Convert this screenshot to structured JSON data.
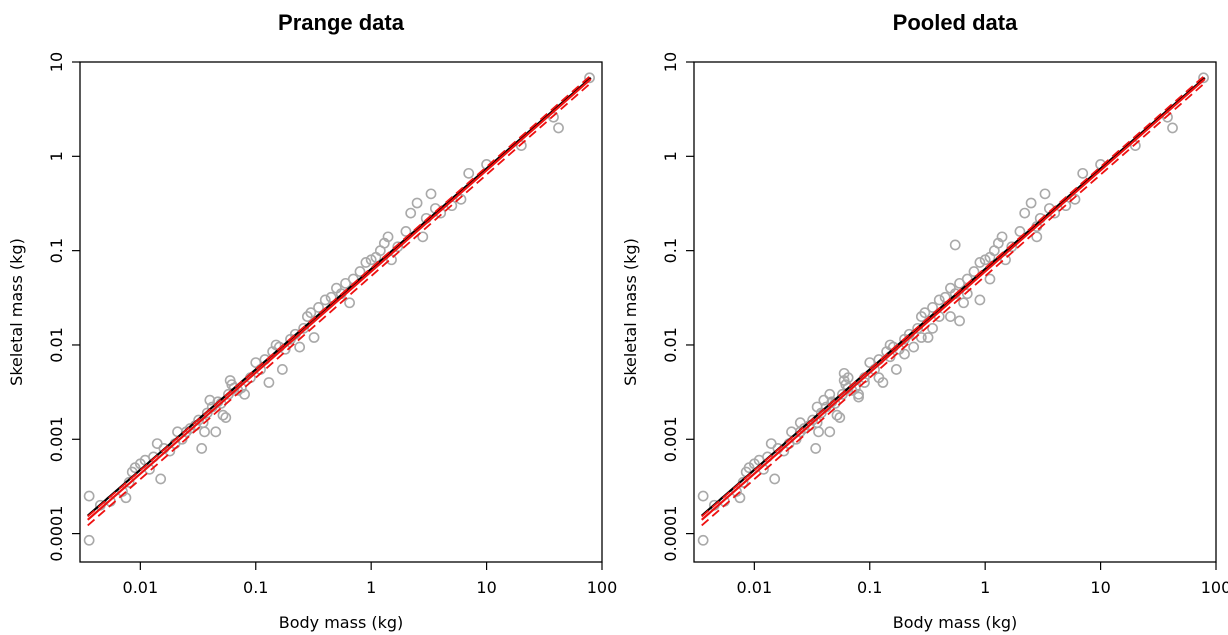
{
  "colors": {
    "points": "#a9a9a9",
    "fit_black": "#000000",
    "fit_red": "#ee1111",
    "ci_red": "#ee1111"
  },
  "chart_data": [
    {
      "type": "scatter",
      "title": "Prange data",
      "xlabel": "Body mass (kg)",
      "ylabel": "Skeletal mass (kg)",
      "x_scale": "log",
      "y_scale": "log",
      "xlim": [
        0.003,
        100
      ],
      "ylim": [
        5e-05,
        10
      ],
      "x_ticks": [
        0.01,
        0.1,
        1,
        10,
        100
      ],
      "x_tick_labels": [
        "0.01",
        "0.1",
        "1",
        "10",
        "100"
      ],
      "y_ticks": [
        0.0001,
        0.001,
        0.01,
        0.1,
        1,
        10
      ],
      "y_tick_labels": [
        "0.0001",
        "0.001",
        "0.01",
        "0.1",
        "1",
        "10"
      ],
      "grid": false,
      "lines": [
        {
          "style": "solid",
          "color": "#000000",
          "x": [
            0.0035,
            80
          ],
          "y": [
            0.000155,
            6.8
          ]
        },
        {
          "style": "solid",
          "color": "#ee1111",
          "x": [
            0.0035,
            80
          ],
          "y": [
            0.00014,
            6.6
          ]
        },
        {
          "style": "dashed",
          "color": "#ee1111",
          "x": [
            0.0035,
            80
          ],
          "y": [
            0.000152,
            7.2
          ]
        },
        {
          "style": "dashed",
          "color": "#ee1111",
          "x": [
            0.0035,
            80
          ],
          "y": [
            0.000122,
            6.0
          ]
        }
      ],
      "points": [
        [
          0.0036,
          0.00025
        ],
        [
          0.0036,
          8.5e-05
        ],
        [
          0.0045,
          0.0002
        ],
        [
          0.0055,
          0.00022
        ],
        [
          0.007,
          0.00028
        ],
        [
          0.0075,
          0.00024
        ],
        [
          0.008,
          0.00035
        ],
        [
          0.0085,
          0.00045
        ],
        [
          0.009,
          0.0005
        ],
        [
          0.01,
          0.00055
        ],
        [
          0.011,
          0.0006
        ],
        [
          0.012,
          0.00048
        ],
        [
          0.013,
          0.00065
        ],
        [
          0.014,
          0.0009
        ],
        [
          0.015,
          0.00038
        ],
        [
          0.016,
          0.0008
        ],
        [
          0.018,
          0.00075
        ],
        [
          0.02,
          0.0009
        ],
        [
          0.021,
          0.0012
        ],
        [
          0.023,
          0.001
        ],
        [
          0.025,
          0.0012
        ],
        [
          0.027,
          0.0013
        ],
        [
          0.03,
          0.0014
        ],
        [
          0.032,
          0.0016
        ],
        [
          0.034,
          0.0008
        ],
        [
          0.035,
          0.0015
        ],
        [
          0.036,
          0.0012
        ],
        [
          0.038,
          0.0019
        ],
        [
          0.04,
          0.0026
        ],
        [
          0.042,
          0.0022
        ],
        [
          0.045,
          0.0012
        ],
        [
          0.047,
          0.0025
        ],
        [
          0.05,
          0.0024
        ],
        [
          0.052,
          0.0018
        ],
        [
          0.055,
          0.0017
        ],
        [
          0.058,
          0.003
        ],
        [
          0.06,
          0.0042
        ],
        [
          0.062,
          0.0038
        ],
        [
          0.065,
          0.0035
        ],
        [
          0.07,
          0.0033
        ],
        [
          0.075,
          0.0035
        ],
        [
          0.08,
          0.003
        ],
        [
          0.09,
          0.0045
        ],
        [
          0.1,
          0.0065
        ],
        [
          0.11,
          0.0055
        ],
        [
          0.12,
          0.007
        ],
        [
          0.13,
          0.004
        ],
        [
          0.14,
          0.0085
        ],
        [
          0.15,
          0.01
        ],
        [
          0.16,
          0.0095
        ],
        [
          0.17,
          0.0055
        ],
        [
          0.18,
          0.009
        ],
        [
          0.2,
          0.0115
        ],
        [
          0.22,
          0.013
        ],
        [
          0.24,
          0.0095
        ],
        [
          0.26,
          0.015
        ],
        [
          0.28,
          0.02
        ],
        [
          0.3,
          0.022
        ],
        [
          0.32,
          0.012
        ],
        [
          0.35,
          0.025
        ],
        [
          0.4,
          0.03
        ],
        [
          0.45,
          0.032
        ],
        [
          0.5,
          0.04
        ],
        [
          0.55,
          0.035
        ],
        [
          0.6,
          0.045
        ],
        [
          0.65,
          0.028
        ],
        [
          0.7,
          0.05
        ],
        [
          0.8,
          0.06
        ],
        [
          0.9,
          0.075
        ],
        [
          1.0,
          0.08
        ],
        [
          1.1,
          0.085
        ],
        [
          1.2,
          0.1
        ],
        [
          1.3,
          0.12
        ],
        [
          1.4,
          0.14
        ],
        [
          1.5,
          0.08
        ],
        [
          1.7,
          0.11
        ],
        [
          2.0,
          0.16
        ],
        [
          2.2,
          0.25
        ],
        [
          2.5,
          0.32
        ],
        [
          2.8,
          0.14
        ],
        [
          3.0,
          0.22
        ],
        [
          3.3,
          0.4
        ],
        [
          3.6,
          0.28
        ],
        [
          4.0,
          0.25
        ],
        [
          5.0,
          0.3
        ],
        [
          6.0,
          0.35
        ],
        [
          7.0,
          0.66
        ],
        [
          10,
          0.82
        ],
        [
          20,
          1.3
        ],
        [
          38,
          2.6
        ],
        [
          42,
          2.0
        ],
        [
          78,
          6.8
        ]
      ]
    },
    {
      "type": "scatter",
      "title": "Pooled data",
      "xlabel": "Body mass (kg)",
      "ylabel": "Skeletal mass (kg)",
      "x_scale": "log",
      "y_scale": "log",
      "xlim": [
        0.003,
        100
      ],
      "ylim": [
        5e-05,
        10
      ],
      "x_ticks": [
        0.01,
        0.1,
        1,
        10,
        100
      ],
      "x_tick_labels": [
        "0.01",
        "0.1",
        "1",
        "10",
        "100"
      ],
      "y_ticks": [
        0.0001,
        0.001,
        0.01,
        0.1,
        1,
        10
      ],
      "y_tick_labels": [
        "0.0001",
        "0.001",
        "0.01",
        "0.1",
        "1",
        "10"
      ],
      "grid": false,
      "lines": [
        {
          "style": "solid",
          "color": "#000000",
          "x": [
            0.0035,
            80
          ],
          "y": [
            0.000155,
            6.8
          ]
        },
        {
          "style": "solid",
          "color": "#ee1111",
          "x": [
            0.0035,
            80
          ],
          "y": [
            0.00014,
            6.6
          ]
        },
        {
          "style": "dashed",
          "color": "#ee1111",
          "x": [
            0.0035,
            80
          ],
          "y": [
            0.000152,
            7.2
          ]
        },
        {
          "style": "dashed",
          "color": "#ee1111",
          "x": [
            0.0035,
            80
          ],
          "y": [
            0.000122,
            6.0
          ]
        }
      ],
      "points": [
        [
          0.0036,
          0.00025
        ],
        [
          0.0036,
          8.5e-05
        ],
        [
          0.0045,
          0.0002
        ],
        [
          0.0055,
          0.00022
        ],
        [
          0.007,
          0.00028
        ],
        [
          0.0075,
          0.00024
        ],
        [
          0.008,
          0.00035
        ],
        [
          0.0085,
          0.00045
        ],
        [
          0.009,
          0.0005
        ],
        [
          0.01,
          0.00055
        ],
        [
          0.011,
          0.0006
        ],
        [
          0.012,
          0.00048
        ],
        [
          0.013,
          0.00065
        ],
        [
          0.014,
          0.0009
        ],
        [
          0.015,
          0.00038
        ],
        [
          0.016,
          0.0008
        ],
        [
          0.018,
          0.00075
        ],
        [
          0.02,
          0.0009
        ],
        [
          0.021,
          0.0012
        ],
        [
          0.023,
          0.001
        ],
        [
          0.025,
          0.0012
        ],
        [
          0.027,
          0.0013
        ],
        [
          0.03,
          0.0014
        ],
        [
          0.032,
          0.0016
        ],
        [
          0.034,
          0.0008
        ],
        [
          0.035,
          0.0015
        ],
        [
          0.036,
          0.0012
        ],
        [
          0.038,
          0.0019
        ],
        [
          0.04,
          0.0026
        ],
        [
          0.042,
          0.0022
        ],
        [
          0.045,
          0.0012
        ],
        [
          0.047,
          0.0025
        ],
        [
          0.05,
          0.0024
        ],
        [
          0.052,
          0.0018
        ],
        [
          0.055,
          0.0017
        ],
        [
          0.058,
          0.003
        ],
        [
          0.06,
          0.0042
        ],
        [
          0.062,
          0.0038
        ],
        [
          0.065,
          0.0035
        ],
        [
          0.07,
          0.0033
        ],
        [
          0.075,
          0.0035
        ],
        [
          0.08,
          0.003
        ],
        [
          0.09,
          0.0045
        ],
        [
          0.1,
          0.0065
        ],
        [
          0.11,
          0.0055
        ],
        [
          0.12,
          0.007
        ],
        [
          0.13,
          0.004
        ],
        [
          0.14,
          0.0085
        ],
        [
          0.15,
          0.01
        ],
        [
          0.16,
          0.0095
        ],
        [
          0.17,
          0.0055
        ],
        [
          0.18,
          0.009
        ],
        [
          0.2,
          0.0115
        ],
        [
          0.22,
          0.013
        ],
        [
          0.24,
          0.0095
        ],
        [
          0.26,
          0.015
        ],
        [
          0.28,
          0.02
        ],
        [
          0.3,
          0.022
        ],
        [
          0.32,
          0.012
        ],
        [
          0.35,
          0.025
        ],
        [
          0.4,
          0.03
        ],
        [
          0.45,
          0.032
        ],
        [
          0.5,
          0.04
        ],
        [
          0.55,
          0.035
        ],
        [
          0.6,
          0.045
        ],
        [
          0.65,
          0.028
        ],
        [
          0.7,
          0.05
        ],
        [
          0.8,
          0.06
        ],
        [
          0.9,
          0.075
        ],
        [
          1.0,
          0.08
        ],
        [
          1.1,
          0.085
        ],
        [
          1.2,
          0.1
        ],
        [
          1.3,
          0.12
        ],
        [
          1.4,
          0.14
        ],
        [
          1.5,
          0.08
        ],
        [
          1.7,
          0.11
        ],
        [
          2.0,
          0.16
        ],
        [
          2.2,
          0.25
        ],
        [
          2.5,
          0.32
        ],
        [
          2.8,
          0.14
        ],
        [
          3.0,
          0.22
        ],
        [
          3.3,
          0.4
        ],
        [
          3.6,
          0.28
        ],
        [
          4.0,
          0.25
        ],
        [
          5.0,
          0.3
        ],
        [
          6.0,
          0.35
        ],
        [
          7.0,
          0.66
        ],
        [
          10,
          0.82
        ],
        [
          20,
          1.3
        ],
        [
          38,
          2.6
        ],
        [
          42,
          2.0
        ],
        [
          78,
          6.8
        ],
        [
          0.55,
          0.115
        ],
        [
          0.06,
          0.005
        ],
        [
          0.09,
          0.004
        ],
        [
          0.2,
          0.008
        ],
        [
          0.35,
          0.015
        ],
        [
          0.5,
          0.02
        ],
        [
          0.7,
          0.035
        ],
        [
          0.08,
          0.0028
        ],
        [
          0.025,
          0.0015
        ],
        [
          0.045,
          0.003
        ],
        [
          0.12,
          0.0045
        ],
        [
          0.28,
          0.012
        ],
        [
          0.6,
          0.018
        ],
        [
          1.1,
          0.05
        ],
        [
          2.8,
          0.18
        ],
        [
          0.15,
          0.0075
        ],
        [
          0.4,
          0.02
        ],
        [
          0.9,
          0.03
        ],
        [
          0.035,
          0.0022
        ],
        [
          0.065,
          0.0045
        ]
      ]
    }
  ]
}
